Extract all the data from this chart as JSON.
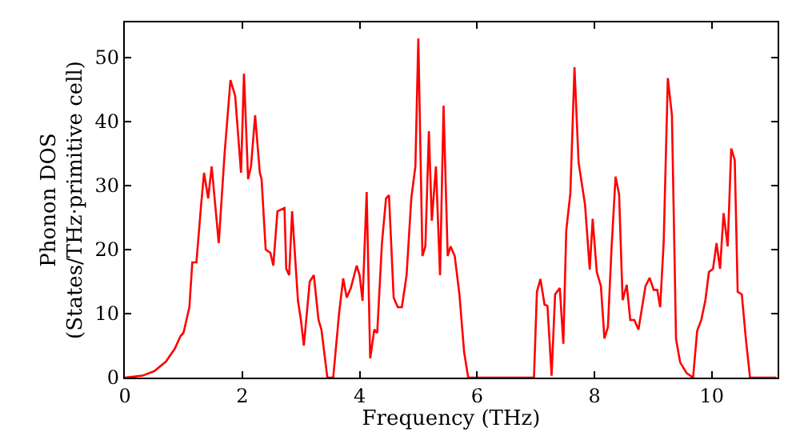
{
  "chart_data": {
    "type": "line",
    "xlabel": "Frequency (THz)",
    "ylabel": "Phonon DOS\n(States/THz·primitive cell)",
    "xlim": [
      0,
      11.12
    ],
    "ylim": [
      0,
      55.5
    ],
    "xticks": [
      0,
      2,
      4,
      6,
      8,
      10
    ],
    "yticks": [
      0,
      10,
      20,
      30,
      40,
      50
    ],
    "marker": "none",
    "line_style": "solid",
    "series": [
      {
        "color": "#ff0000",
        "x": [
          0,
          0.3,
          0.5,
          0.7,
          0.85,
          0.95,
          1.0,
          1.05,
          1.1,
          1.15,
          1.22,
          1.3,
          1.35,
          1.42,
          1.48,
          1.55,
          1.6,
          1.7,
          1.8,
          1.88,
          1.98,
          2.03,
          2.1,
          2.15,
          2.22,
          2.3,
          2.33,
          2.4,
          2.48,
          2.53,
          2.6,
          2.72,
          2.75,
          2.8,
          2.85,
          2.95,
          3.0,
          3.05,
          3.15,
          3.22,
          3.3,
          3.35,
          3.45,
          3.55,
          3.65,
          3.72,
          3.78,
          3.85,
          3.95,
          4.0,
          4.05,
          4.12,
          4.18,
          4.25,
          4.3,
          4.38,
          4.45,
          4.5,
          4.58,
          4.65,
          4.72,
          4.8,
          4.88,
          4.95,
          5.0,
          5.07,
          5.12,
          5.18,
          5.23,
          5.3,
          5.37,
          5.43,
          5.5,
          5.55,
          5.62,
          5.7,
          5.78,
          5.85,
          6.97,
          7.02,
          7.08,
          7.15,
          7.2,
          7.27,
          7.33,
          7.41,
          7.47,
          7.52,
          7.59,
          7.66,
          7.73,
          7.84,
          7.92,
          7.97,
          8.04,
          8.11,
          8.17,
          8.23,
          8.29,
          8.36,
          8.42,
          8.48,
          8.55,
          8.61,
          8.68,
          8.75,
          8.87,
          8.94,
          9.01,
          9.07,
          9.12,
          9.18,
          9.25,
          9.32,
          9.39,
          9.46,
          9.57,
          9.68,
          9.75,
          9.82,
          9.89,
          9.95,
          10.02,
          10.08,
          10.14,
          10.2,
          10.27,
          10.33,
          10.39,
          10.44,
          10.51,
          10.58,
          10.65,
          11.1
        ],
        "values": [
          0,
          0.3,
          1,
          2.5,
          4.5,
          6.5,
          7,
          9,
          11,
          18,
          18,
          27,
          32,
          28,
          33,
          26,
          21,
          35,
          46.5,
          44,
          32,
          47.5,
          31,
          33,
          41,
          32,
          31,
          20,
          19.5,
          17.5,
          26,
          26.5,
          17,
          16,
          26,
          12,
          9,
          5,
          15,
          16,
          9,
          7.5,
          0,
          0,
          10,
          15.5,
          12.5,
          14,
          17.5,
          16,
          12,
          29,
          3,
          7.5,
          7,
          21,
          28,
          28.5,
          12.5,
          11,
          11,
          16,
          28,
          33,
          53,
          19,
          20.5,
          38.5,
          24.5,
          33,
          16,
          42.5,
          19,
          20.5,
          19,
          13,
          4,
          0,
          0,
          13.4,
          15.4,
          11.4,
          11.2,
          0.3,
          13,
          14,
          5.3,
          23,
          28.8,
          48.5,
          33.6,
          27,
          16.9,
          24.8,
          16.5,
          14.3,
          6.1,
          7.9,
          20,
          31.4,
          28.6,
          12.1,
          14.5,
          9,
          9,
          7.5,
          14.3,
          15.6,
          13.7,
          13.7,
          11,
          21.3,
          46.8,
          41,
          6,
          2.4,
          0.7,
          0,
          7.3,
          9,
          12.1,
          16.5,
          17,
          21,
          17,
          25.7,
          20.5,
          35.8,
          34,
          13.4,
          13,
          6,
          0,
          0
        ]
      }
    ]
  }
}
